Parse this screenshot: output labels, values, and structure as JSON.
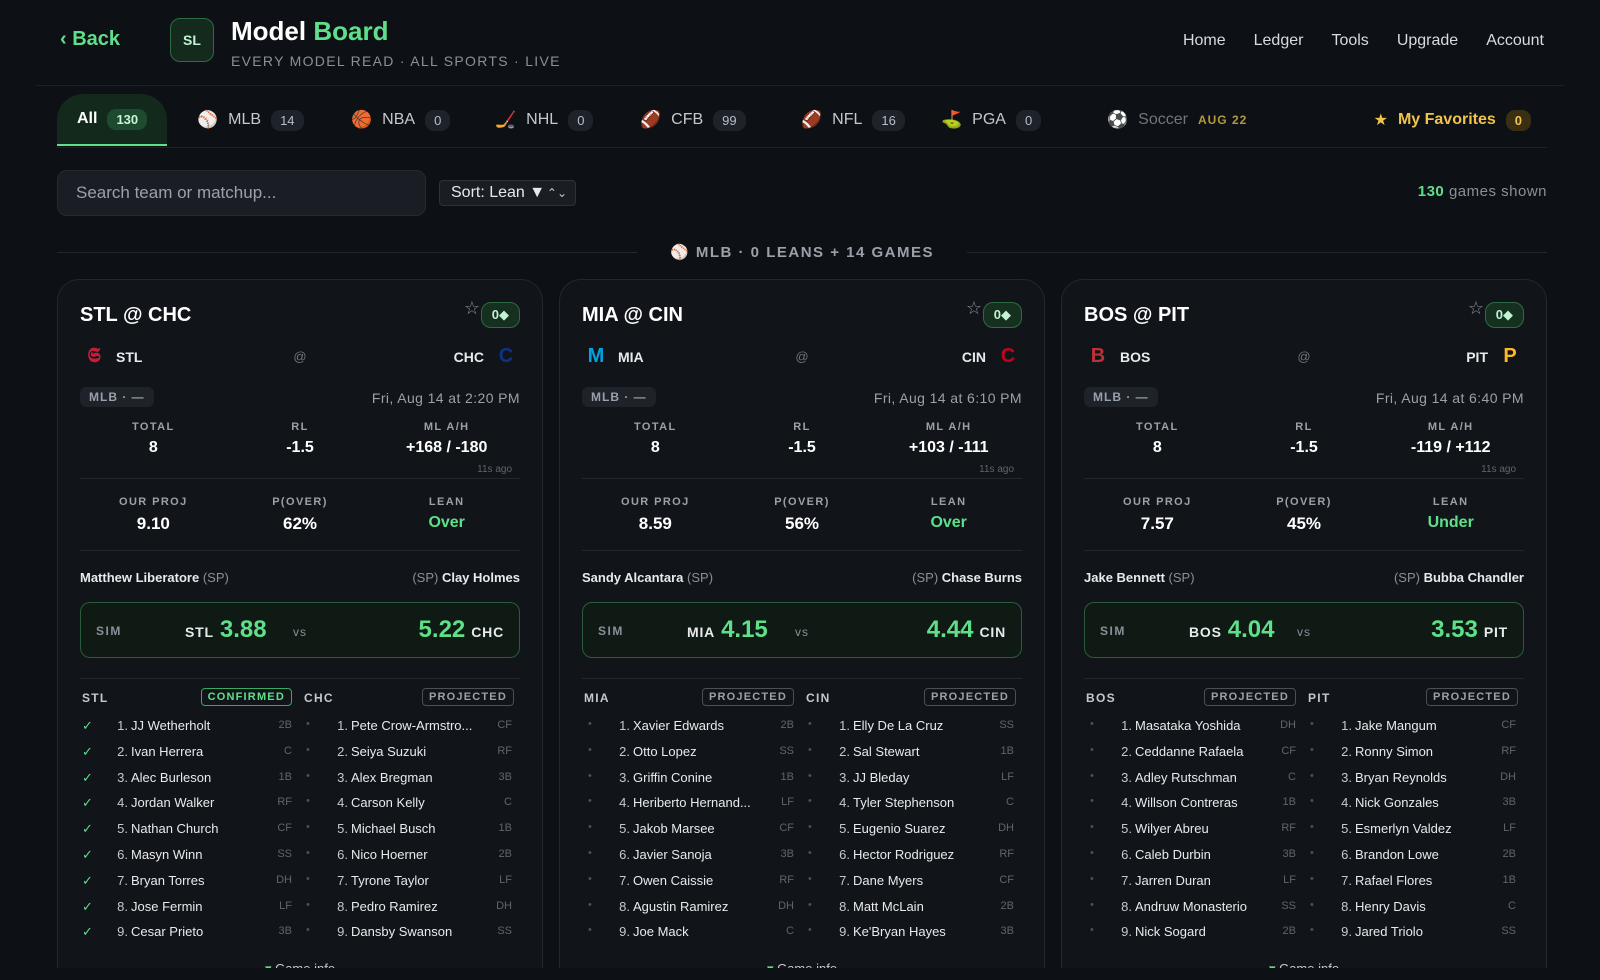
{
  "header": {
    "back_label": "Back",
    "logo_text": "SL",
    "title_main": "Model ",
    "title_accent": "Board",
    "subtitle": "EVERY MODEL READ · ALL SPORTS · LIVE",
    "nav": [
      "Home",
      "Ledger",
      "Tools",
      "Upgrade",
      "Account"
    ]
  },
  "tabs": [
    {
      "label": "All",
      "count": "130",
      "icon": ""
    },
    {
      "label": "MLB",
      "count": "14",
      "icon": "⚾"
    },
    {
      "label": "NBA",
      "count": "0",
      "icon": "🏀"
    },
    {
      "label": "NHL",
      "count": "0",
      "icon": "🏒"
    },
    {
      "label": "CFB",
      "count": "99",
      "icon": "🏈"
    },
    {
      "label": "NFL",
      "count": "16",
      "icon": "🏈"
    },
    {
      "label": "PGA",
      "count": "0",
      "icon": "⛳"
    },
    {
      "label": "Soccer",
      "soon": "AUG 22",
      "icon": "⚽"
    }
  ],
  "favorites": {
    "label": "My Favorites",
    "count": "0",
    "icon": "★"
  },
  "search": {
    "placeholder": "Search team or matchup..."
  },
  "sort": {
    "label": "Sort: Lean ▼",
    "arrows": "⌃⌄"
  },
  "shown": {
    "count": "130",
    "label": " games shown"
  },
  "section": {
    "label": "⚾ MLB · 0 LEANS   + 14 GAMES"
  },
  "cards": [
    {
      "matchup": "STL @ CHC",
      "star": "☆",
      "badge": "0◆",
      "away": {
        "abbr": "STL",
        "logo": "𝕾",
        "color": "#c41e3a"
      },
      "home": {
        "abbr": "CHC",
        "logo": "C",
        "color": "#0e3386"
      },
      "at": "@",
      "league": "MLB · —",
      "datetime": "Fri, Aug 14 at 2:20 PM",
      "odds": {
        "total_label": "TOTAL",
        "total": "8",
        "rl_label": "RL",
        "rl": "-1.5",
        "ml_label": "ML A/H",
        "ml": "+168 / -180",
        "ago": "11s ago"
      },
      "model": {
        "proj_label": "OUR PROJ",
        "proj": "9.10",
        "pover_label": "P(OVER)",
        "pover": "62%",
        "lean_label": "LEAN",
        "lean": "Over"
      },
      "pitchers": {
        "away": "Matthew Liberatore",
        "home": "Clay Holmes",
        "sp": "(SP)"
      },
      "sim": {
        "label": "SIM",
        "away_abbr": "STL",
        "away_score": "3.88",
        "vs": "vs",
        "home_score": "5.22",
        "home_abbr": "CHC"
      },
      "lineups": {
        "away": {
          "team": "STL",
          "status": "CONFIRMED",
          "confirmed": true,
          "players": [
            [
              "1.",
              "JJ Wetherholt",
              "2B"
            ],
            [
              "2.",
              "Ivan Herrera",
              "C"
            ],
            [
              "3.",
              "Alec Burleson",
              "1B"
            ],
            [
              "4.",
              "Jordan Walker",
              "RF"
            ],
            [
              "5.",
              "Nathan Church",
              "CF"
            ],
            [
              "6.",
              "Masyn Winn",
              "SS"
            ],
            [
              "7.",
              "Bryan Torres",
              "DH"
            ],
            [
              "8.",
              "Jose Fermin",
              "LF"
            ],
            [
              "9.",
              "Cesar Prieto",
              "3B"
            ]
          ]
        },
        "home": {
          "team": "CHC",
          "status": "PROJECTED",
          "confirmed": false,
          "players": [
            [
              "1.",
              "Pete Crow-Armstro...",
              "CF"
            ],
            [
              "2.",
              "Seiya Suzuki",
              "RF"
            ],
            [
              "3.",
              "Alex Bregman",
              "3B"
            ],
            [
              "4.",
              "Carson Kelly",
              "C"
            ],
            [
              "5.",
              "Michael Busch",
              "1B"
            ],
            [
              "6.",
              "Nico Hoerner",
              "2B"
            ],
            [
              "7.",
              "Tyrone Taylor",
              "LF"
            ],
            [
              "8.",
              "Pedro Ramirez",
              "DH"
            ],
            [
              "9.",
              "Dansby Swanson",
              "SS"
            ]
          ]
        }
      },
      "game_info": "Game info"
    },
    {
      "matchup": "MIA @ CIN",
      "star": "☆",
      "badge": "0◆",
      "away": {
        "abbr": "MIA",
        "logo": "M",
        "color": "#00a3e0"
      },
      "home": {
        "abbr": "CIN",
        "logo": "C",
        "color": "#c6011f"
      },
      "at": "@",
      "league": "MLB · —",
      "datetime": "Fri, Aug 14 at 6:10 PM",
      "odds": {
        "total_label": "TOTAL",
        "total": "8",
        "rl_label": "RL",
        "rl": "-1.5",
        "ml_label": "ML A/H",
        "ml": "+103 / -111",
        "ago": "11s ago"
      },
      "model": {
        "proj_label": "OUR PROJ",
        "proj": "8.59",
        "pover_label": "P(OVER)",
        "pover": "56%",
        "lean_label": "LEAN",
        "lean": "Over"
      },
      "pitchers": {
        "away": "Sandy Alcantara",
        "home": "Chase Burns",
        "sp": "(SP)"
      },
      "sim": {
        "label": "SIM",
        "away_abbr": "MIA",
        "away_score": "4.15",
        "vs": "vs",
        "home_score": "4.44",
        "home_abbr": "CIN"
      },
      "lineups": {
        "away": {
          "team": "MIA",
          "status": "PROJECTED",
          "confirmed": false,
          "players": [
            [
              "1.",
              "Xavier Edwards",
              "2B"
            ],
            [
              "2.",
              "Otto Lopez",
              "SS"
            ],
            [
              "3.",
              "Griffin Conine",
              "1B"
            ],
            [
              "4.",
              "Heriberto Hernand...",
              "LF"
            ],
            [
              "5.",
              "Jakob Marsee",
              "CF"
            ],
            [
              "6.",
              "Javier Sanoja",
              "3B"
            ],
            [
              "7.",
              "Owen Caissie",
              "RF"
            ],
            [
              "8.",
              "Agustin Ramirez",
              "DH"
            ],
            [
              "9.",
              "Joe Mack",
              "C"
            ]
          ]
        },
        "home": {
          "team": "CIN",
          "status": "PROJECTED",
          "confirmed": false,
          "players": [
            [
              "1.",
              "Elly De La Cruz",
              "SS"
            ],
            [
              "2.",
              "Sal Stewart",
              "1B"
            ],
            [
              "3.",
              "JJ Bleday",
              "LF"
            ],
            [
              "4.",
              "Tyler Stephenson",
              "C"
            ],
            [
              "5.",
              "Eugenio Suarez",
              "DH"
            ],
            [
              "6.",
              "Hector Rodriguez",
              "RF"
            ],
            [
              "7.",
              "Dane Myers",
              "CF"
            ],
            [
              "8.",
              "Matt McLain",
              "2B"
            ],
            [
              "9.",
              "Ke'Bryan Hayes",
              "3B"
            ]
          ]
        }
      },
      "game_info": "Game info"
    },
    {
      "matchup": "BOS @ PIT",
      "star": "☆",
      "badge": "0◆",
      "away": {
        "abbr": "BOS",
        "logo": "B",
        "color": "#bd3039"
      },
      "home": {
        "abbr": "PIT",
        "logo": "P",
        "color": "#fdb827"
      },
      "at": "@",
      "league": "MLB · —",
      "datetime": "Fri, Aug 14 at 6:40 PM",
      "odds": {
        "total_label": "TOTAL",
        "total": "8",
        "rl_label": "RL",
        "rl": "-1.5",
        "ml_label": "ML A/H",
        "ml": "-119 / +112",
        "ago": "11s ago"
      },
      "model": {
        "proj_label": "OUR PROJ",
        "proj": "7.57",
        "pover_label": "P(OVER)",
        "pover": "45%",
        "lean_label": "LEAN",
        "lean": "Under"
      },
      "pitchers": {
        "away": "Jake Bennett",
        "home": "Bubba Chandler",
        "sp": "(SP)"
      },
      "sim": {
        "label": "SIM",
        "away_abbr": "BOS",
        "away_score": "4.04",
        "vs": "vs",
        "home_score": "3.53",
        "home_abbr": "PIT"
      },
      "lineups": {
        "away": {
          "team": "BOS",
          "status": "PROJECTED",
          "confirmed": false,
          "players": [
            [
              "1.",
              "Masataka Yoshida",
              "DH"
            ],
            [
              "2.",
              "Ceddanne Rafaela",
              "CF"
            ],
            [
              "3.",
              "Adley Rutschman",
              "C"
            ],
            [
              "4.",
              "Willson Contreras",
              "1B"
            ],
            [
              "5.",
              "Wilyer Abreu",
              "RF"
            ],
            [
              "6.",
              "Caleb Durbin",
              "3B"
            ],
            [
              "7.",
              "Jarren Duran",
              "LF"
            ],
            [
              "8.",
              "Andruw Monasterio",
              "SS"
            ],
            [
              "9.",
              "Nick Sogard",
              "2B"
            ]
          ]
        },
        "home": {
          "team": "PIT",
          "status": "PROJECTED",
          "confirmed": false,
          "players": [
            [
              "1.",
              "Jake Mangum",
              "CF"
            ],
            [
              "2.",
              "Ronny Simon",
              "RF"
            ],
            [
              "3.",
              "Bryan Reynolds",
              "DH"
            ],
            [
              "4.",
              "Nick Gonzales",
              "3B"
            ],
            [
              "5.",
              "Esmerlyn Valdez",
              "LF"
            ],
            [
              "6.",
              "Brandon Lowe",
              "2B"
            ],
            [
              "7.",
              "Rafael Flores",
              "1B"
            ],
            [
              "8.",
              "Henry Davis",
              "C"
            ],
            [
              "9.",
              "Jared Triolo",
              "SS"
            ]
          ]
        }
      },
      "game_info": "Game info"
    }
  ]
}
